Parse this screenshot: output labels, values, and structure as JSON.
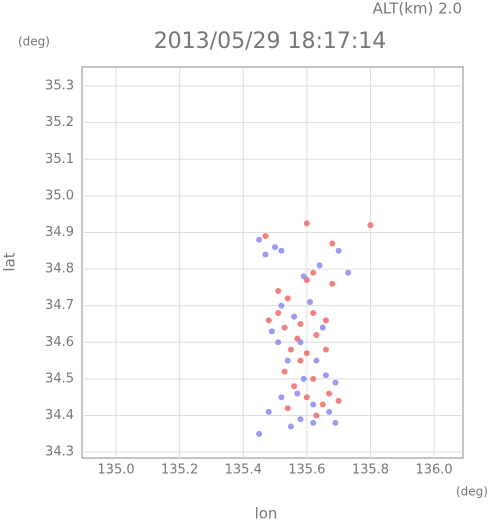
{
  "chart_data": {
    "type": "scatter",
    "title": "2013/05/29 18:17:14",
    "subtitle": "ALT(km) 2.0",
    "x_label": "lon",
    "y_label": "lat",
    "x_unit": "(deg)",
    "y_unit": "(deg)",
    "xlim": [
      134.893,
      136.091
    ],
    "ylim": [
      34.284,
      35.352
    ],
    "xticks": [
      {
        "value": 135.0,
        "label": "135.0"
      },
      135.2,
      135.4,
      135.6,
      135.8,
      {
        "value": 136.0,
        "label": "136.0"
      }
    ],
    "yticks": [
      34.3,
      34.4,
      34.5,
      34.6,
      34.7,
      34.8,
      34.9,
      {
        "value": 35.0,
        "label": "35.0"
      },
      35.1,
      35.2,
      35.3
    ],
    "grid": true,
    "series": [
      {
        "color": "#f06a6a",
        "x": [
          135.6,
          135.8,
          135.68,
          135.62,
          135.6,
          135.54,
          135.51,
          135.48,
          135.53,
          135.58,
          135.62,
          135.66,
          135.57,
          135.63,
          135.55,
          135.6,
          135.66,
          135.58,
          135.53,
          135.56,
          135.62,
          135.67,
          135.6,
          135.65,
          135.7,
          135.54,
          135.63,
          135.47,
          135.68,
          135.51
        ],
        "values": [
          34.925,
          34.92,
          34.87,
          34.79,
          34.77,
          34.72,
          34.68,
          34.66,
          34.64,
          34.65,
          34.68,
          34.66,
          34.61,
          34.62,
          34.58,
          34.57,
          34.58,
          34.55,
          34.52,
          34.48,
          34.5,
          34.46,
          34.45,
          34.43,
          34.44,
          34.42,
          34.4,
          34.89,
          34.76,
          34.74
        ]
      },
      {
        "color": "#8a8aee",
        "x": [
          135.45,
          135.5,
          135.52,
          135.47,
          135.7,
          135.73,
          135.64,
          135.59,
          135.52,
          135.49,
          135.56,
          135.61,
          135.65,
          135.58,
          135.51,
          135.54,
          135.63,
          135.66,
          135.59,
          135.69,
          135.57,
          135.52,
          135.62,
          135.67,
          135.48,
          135.58,
          135.62,
          135.55,
          135.45,
          135.69
        ],
        "values": [
          34.88,
          34.86,
          34.85,
          34.84,
          34.85,
          34.79,
          34.81,
          34.78,
          34.7,
          34.63,
          34.67,
          34.71,
          34.64,
          34.6,
          34.6,
          34.55,
          34.55,
          34.51,
          34.5,
          34.49,
          34.46,
          34.45,
          34.43,
          34.41,
          34.41,
          34.39,
          34.38,
          34.37,
          34.35,
          34.38
        ]
      }
    ]
  }
}
